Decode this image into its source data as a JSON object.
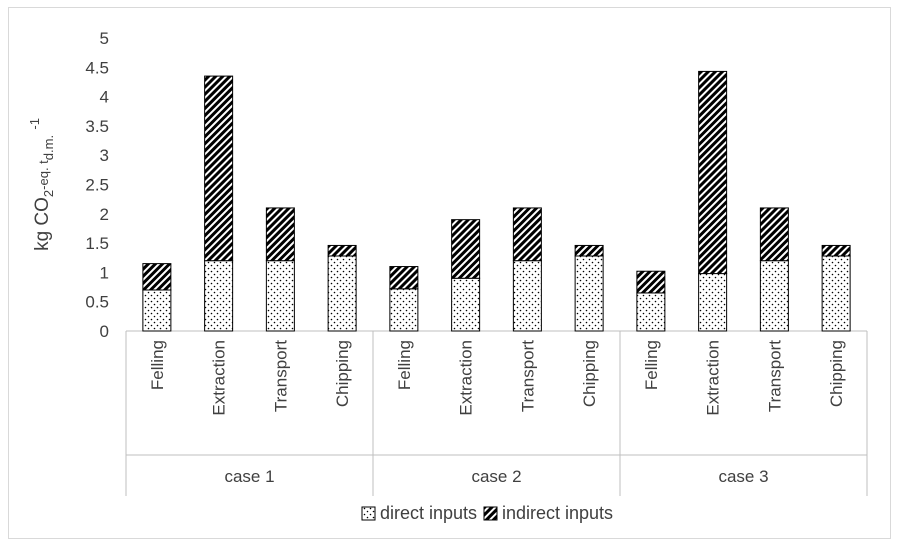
{
  "chart_data": {
    "type": "bar",
    "stacked": true,
    "groups": [
      {
        "name": "case 1",
        "categories": [
          "Felling",
          "Extraction",
          "Transport",
          "Chipping"
        ]
      },
      {
        "name": "case 2",
        "categories": [
          "Felling",
          "Extraction",
          "Transport",
          "Chipping"
        ]
      },
      {
        "name": "case 3",
        "categories": [
          "Felling",
          "Extraction",
          "Transport",
          "Chipping"
        ]
      }
    ],
    "series": [
      {
        "name": "direct inputs",
        "pattern": "dots",
        "values": [
          0.7,
          1.2,
          1.2,
          1.28,
          0.72,
          0.9,
          1.2,
          1.28,
          0.65,
          0.98,
          1.2,
          1.28
        ]
      },
      {
        "name": "indirect inputs",
        "pattern": "diagonal-hatch",
        "values": [
          0.45,
          3.15,
          0.9,
          0.18,
          0.38,
          1.0,
          0.9,
          0.18,
          0.37,
          3.45,
          0.9,
          0.18
        ]
      }
    ],
    "ylabel": "kg CO2-eq. td.m.-1",
    "ylim": [
      0,
      5
    ],
    "yticks": [
      "0",
      "0.5",
      "1",
      "1.5",
      "2",
      "2.5",
      "3",
      "3.5",
      "4",
      "4.5",
      "5"
    ],
    "grid": false,
    "legend_position": "bottom"
  },
  "colors": {
    "bar_stroke": "#000000",
    "axis": "#bfbfbf",
    "text": "#404040"
  }
}
